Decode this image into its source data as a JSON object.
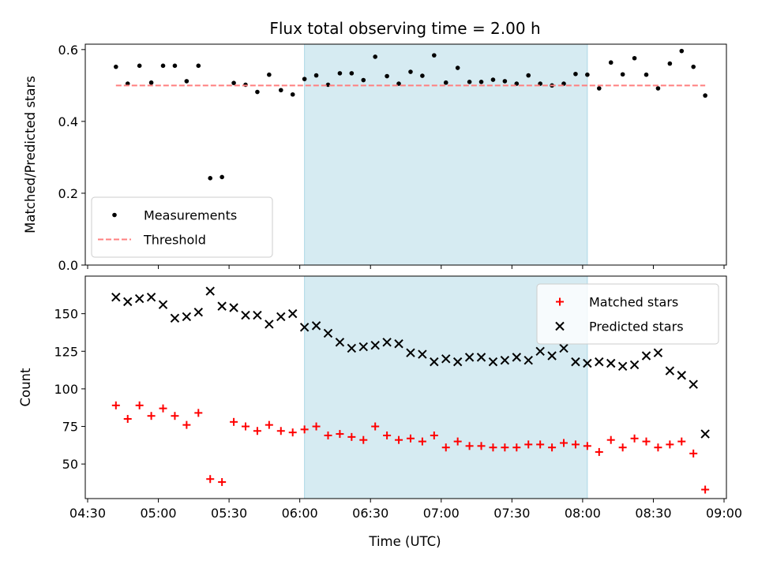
{
  "chart_data": {
    "type": "scatter",
    "title": "Flux total observing time = 2.00 h",
    "xlabel": "Time (UTC)",
    "x_ticks": [
      "04:30",
      "05:00",
      "05:30",
      "06:00",
      "06:30",
      "07:00",
      "07:30",
      "08:00",
      "08:30",
      "09:00"
    ],
    "xlim": [
      "04:29",
      "09:01"
    ],
    "times": [
      "04:42",
      "04:47",
      "04:52",
      "04:57",
      "05:02",
      "05:07",
      "05:12",
      "05:17",
      "05:22",
      "05:27",
      "05:32",
      "05:37",
      "05:42",
      "05:47",
      "05:52",
      "05:57",
      "06:02",
      "06:07",
      "06:12",
      "06:17",
      "06:22",
      "06:27",
      "06:32",
      "06:37",
      "06:42",
      "06:47",
      "06:52",
      "06:57",
      "07:02",
      "07:07",
      "07:12",
      "07:17",
      "07:22",
      "07:27",
      "07:32",
      "07:37",
      "07:42",
      "07:47",
      "07:52",
      "07:57",
      "08:02",
      "08:07",
      "08:12",
      "08:17",
      "08:22",
      "08:27",
      "08:32",
      "08:37",
      "08:42",
      "08:47",
      "08:52"
    ],
    "highlight_span": {
      "start": "06:02",
      "end": "08:02",
      "color": "#add8e6"
    },
    "panels": [
      {
        "name": "ratio",
        "ylabel": "Matched/Predicted stars",
        "ylim": [
          0,
          0.615
        ],
        "yticks": [
          "0.0",
          "0.2",
          "0.4",
          "0.6"
        ],
        "legend_position": "lower-left",
        "series": [
          {
            "name": "Measurements",
            "marker": "dot",
            "color": "#000000",
            "values": [
              0.552,
              0.505,
              0.555,
              0.508,
              0.555,
              0.555,
              0.512,
              0.555,
              0.242,
              0.245,
              0.507,
              0.502,
              0.482,
              0.53,
              0.487,
              0.475,
              0.518,
              0.528,
              0.502,
              0.534,
              0.534,
              0.515,
              0.58,
              0.526,
              0.505,
              0.538,
              0.527,
              0.584,
              0.508,
              0.549,
              0.51,
              0.51,
              0.516,
              0.512,
              0.505,
              0.528,
              0.505,
              0.5,
              0.505,
              0.532,
              0.53,
              0.492,
              0.564,
              0.531,
              0.576,
              0.53,
              0.492,
              0.561,
              0.596,
              0.552,
              0.472
            ]
          },
          {
            "name": "Threshold",
            "style": "dashed",
            "color": "#ff7f7f",
            "value": 0.5,
            "x_range": [
              "04:42",
              "08:52"
            ]
          }
        ]
      },
      {
        "name": "counts",
        "ylabel": "Count",
        "ylim": [
          27,
          175
        ],
        "yticks": [
          "50",
          "75",
          "100",
          "125",
          "150"
        ],
        "legend_position": "top-right",
        "series": [
          {
            "name": "Matched stars",
            "marker": "plus",
            "color": "#ff0000",
            "values": [
              89,
              80,
              89,
              82,
              87,
              82,
              76,
              84,
              40,
              38,
              78,
              75,
              72,
              76,
              72,
              71,
              73,
              75,
              69,
              70,
              68,
              66,
              75,
              69,
              66,
              67,
              65,
              69,
              61,
              65,
              62,
              62,
              61,
              61,
              61,
              63,
              63,
              61,
              64,
              63,
              62,
              58,
              66,
              61,
              67,
              65,
              61,
              63,
              65,
              57,
              33
            ]
          },
          {
            "name": "Predicted stars",
            "marker": "x",
            "color": "#000000",
            "values": [
              161,
              158,
              160,
              161,
              156,
              147,
              148,
              151,
              165,
              155,
              154,
              149,
              149,
              143,
              148,
              150,
              141,
              142,
              137,
              131,
              127,
              128,
              129,
              131,
              130,
              124,
              123,
              118,
              120,
              118,
              121,
              121,
              118,
              119,
              121,
              119,
              125,
              122,
              127,
              118,
              117,
              118,
              117,
              115,
              116,
              122,
              124,
              112,
              109,
              103,
              70
            ]
          }
        ]
      }
    ]
  }
}
